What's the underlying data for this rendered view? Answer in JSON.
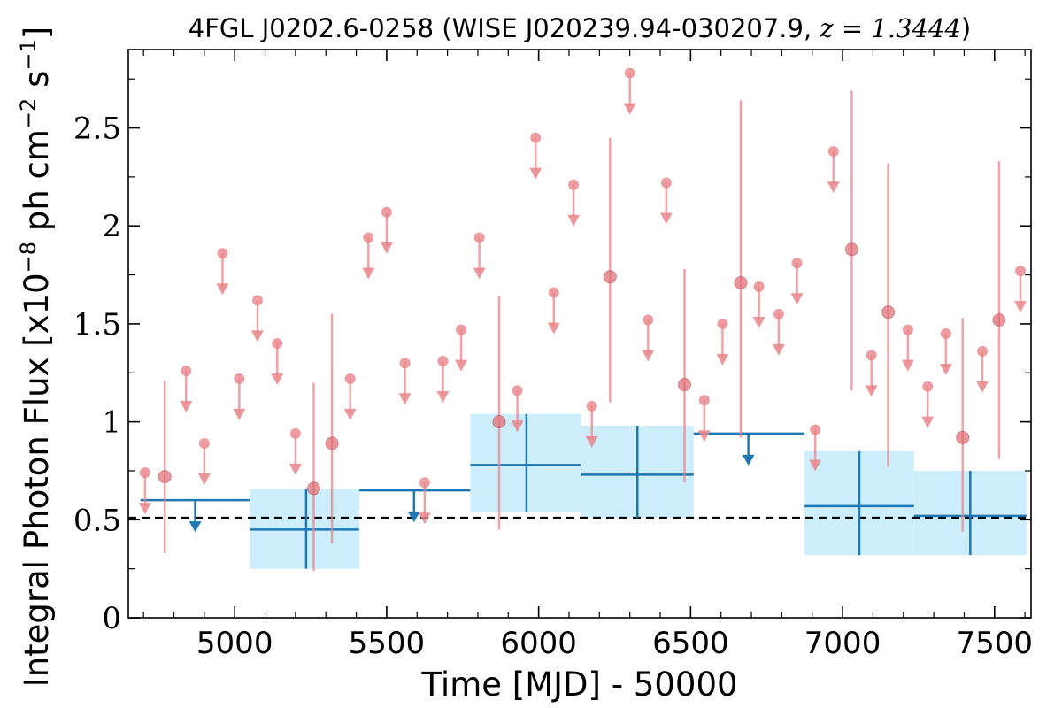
{
  "chart_data": {
    "type": "scatter",
    "title_main": "4FGL J0202.6-0258 (WISE J020239.94-030207.9, ",
    "title_z": "z = 1.3444",
    "title_close": ")",
    "xlabel": "Time [MJD] - 50000",
    "ylabel_prefix": "Integral Photon Flux [x10",
    "ylabel_exp1": "−8",
    "ylabel_mid": " ph cm",
    "ylabel_exp2": "−2",
    "ylabel_mid2": " s",
    "ylabel_exp3": "−1",
    "ylabel_suffix": "]",
    "xlim": [
      4650,
      7620
    ],
    "ylim": [
      0,
      2.9
    ],
    "xticks": [
      5000,
      5500,
      6000,
      6500,
      7000,
      7500
    ],
    "xtick_labels": [
      "5000",
      "5500",
      "6000",
      "6500",
      "7000",
      "7500"
    ],
    "yticks": [
      0,
      0.5,
      1,
      1.5,
      2,
      2.5
    ],
    "ytick_labels": [
      "0",
      "0.5",
      "1",
      "1.5",
      "2",
      "2.5"
    ],
    "colors": {
      "short_bins": "#e8858a",
      "long_bins": "#1f77b4",
      "long_bins_fill": "#cdeefc",
      "reference_line": "#000000"
    },
    "reference_line_y": 0.51,
    "short_bin_upper_limits": [
      {
        "x": 4705,
        "y": 0.74
      },
      {
        "x": 4840,
        "y": 1.26
      },
      {
        "x": 4900,
        "y": 0.89
      },
      {
        "x": 4960,
        "y": 1.86
      },
      {
        "x": 5015,
        "y": 1.22
      },
      {
        "x": 5075,
        "y": 1.62
      },
      {
        "x": 5140,
        "y": 1.4
      },
      {
        "x": 5200,
        "y": 0.94
      },
      {
        "x": 5380,
        "y": 1.22
      },
      {
        "x": 5440,
        "y": 1.94
      },
      {
        "x": 5500,
        "y": 2.07
      },
      {
        "x": 5560,
        "y": 1.3
      },
      {
        "x": 5625,
        "y": 0.69
      },
      {
        "x": 5685,
        "y": 1.31
      },
      {
        "x": 5745,
        "y": 1.47
      },
      {
        "x": 5805,
        "y": 1.94
      },
      {
        "x": 5930,
        "y": 1.16
      },
      {
        "x": 5990,
        "y": 2.45
      },
      {
        "x": 6050,
        "y": 1.66
      },
      {
        "x": 6115,
        "y": 2.21
      },
      {
        "x": 6175,
        "y": 1.08
      },
      {
        "x": 6300,
        "y": 2.78
      },
      {
        "x": 6360,
        "y": 1.52
      },
      {
        "x": 6420,
        "y": 2.22
      },
      {
        "x": 6545,
        "y": 1.11
      },
      {
        "x": 6605,
        "y": 1.5
      },
      {
        "x": 6725,
        "y": 1.69
      },
      {
        "x": 6790,
        "y": 1.55
      },
      {
        "x": 6850,
        "y": 1.81
      },
      {
        "x": 6910,
        "y": 0.96
      },
      {
        "x": 6970,
        "y": 2.38
      },
      {
        "x": 7095,
        "y": 1.34
      },
      {
        "x": 7215,
        "y": 1.47
      },
      {
        "x": 7280,
        "y": 1.18
      },
      {
        "x": 7340,
        "y": 1.45
      },
      {
        "x": 7460,
        "y": 1.36
      },
      {
        "x": 7585,
        "y": 1.77
      }
    ],
    "short_bin_detections": [
      {
        "x": 4770,
        "y": 0.72,
        "ylo": 0.33,
        "yhi": 1.21
      },
      {
        "x": 5260,
        "y": 0.66,
        "ylo": 0.24,
        "yhi": 1.2
      },
      {
        "x": 5320,
        "y": 0.89,
        "ylo": 0.38,
        "yhi": 1.55
      },
      {
        "x": 5870,
        "y": 1.0,
        "ylo": 0.45,
        "yhi": 1.64
      },
      {
        "x": 6235,
        "y": 1.74,
        "ylo": 1.1,
        "yhi": 2.45
      },
      {
        "x": 6480,
        "y": 1.19,
        "ylo": 0.69,
        "yhi": 1.78
      },
      {
        "x": 6665,
        "y": 1.71,
        "ylo": 0.92,
        "yhi": 2.64
      },
      {
        "x": 7030,
        "y": 1.88,
        "ylo": 1.16,
        "yhi": 2.69
      },
      {
        "x": 7150,
        "y": 1.56,
        "ylo": 0.77,
        "yhi": 2.32
      },
      {
        "x": 7395,
        "y": 0.92,
        "ylo": 0.44,
        "yhi": 1.53
      },
      {
        "x": 7515,
        "y": 1.52,
        "ylo": 0.81,
        "yhi": 2.33
      }
    ],
    "long_bin_detections": [
      {
        "x0": 5050,
        "x1": 5410,
        "xc": 5235,
        "y": 0.45,
        "ylo": 0.25,
        "yhi": 0.66
      },
      {
        "x0": 5775,
        "x1": 6140,
        "xc": 5960,
        "y": 0.78,
        "ylo": 0.54,
        "yhi": 1.04
      },
      {
        "x0": 6140,
        "x1": 6510,
        "xc": 6325,
        "y": 0.73,
        "ylo": 0.51,
        "yhi": 0.98
      },
      {
        "x0": 6875,
        "x1": 7235,
        "xc": 7055,
        "y": 0.57,
        "ylo": 0.32,
        "yhi": 0.85
      },
      {
        "x0": 7235,
        "x1": 7605,
        "xc": 7420,
        "y": 0.52,
        "ylo": 0.32,
        "yhi": 0.75
      }
    ],
    "long_bin_upper_limits": [
      {
        "x0": 4690,
        "x1": 5050,
        "xc": 4870,
        "y": 0.6
      },
      {
        "x0": 5410,
        "x1": 5775,
        "xc": 5590,
        "y": 0.65
      },
      {
        "x0": 6510,
        "x1": 6875,
        "xc": 6690,
        "y": 0.94
      }
    ]
  }
}
